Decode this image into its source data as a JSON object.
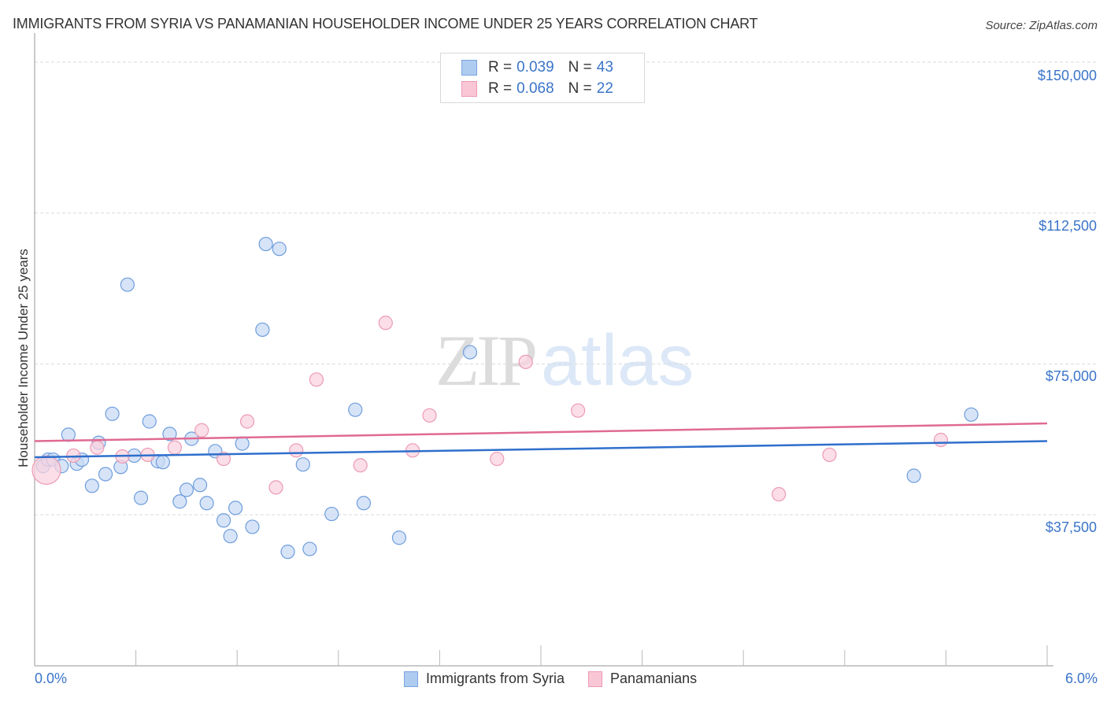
{
  "header": {
    "title": "IMMIGRANTS FROM SYRIA VS PANAMANIAN HOUSEHOLDER INCOME UNDER 25 YEARS CORRELATION CHART",
    "source": "Source: ZipAtlas.com"
  },
  "watermark": {
    "zip": "ZIP",
    "atlas": "atlas"
  },
  "legend": {
    "rows": [
      {
        "r_label": "R =",
        "r_value": "0.039",
        "n_label": "N =",
        "n_value": "43",
        "color": "#aecbf0",
        "border": "#7aa6e0"
      },
      {
        "r_label": "R =",
        "r_value": "0.068",
        "n_label": "N =",
        "n_value": "22",
        "color": "#f9c6d5",
        "border": "#ec9ab4"
      }
    ]
  },
  "axes": {
    "ylabel": "Householder Income Under 25 years",
    "y_ticks": [
      "$150,000",
      "$112,500",
      "$75,000",
      "$37,500"
    ],
    "x_min_label": "0.0%",
    "x_max_label": "6.0%"
  },
  "bottom_legend": [
    {
      "label": "Immigrants from Syria",
      "color": "#aecbf0",
      "border": "#7aa6e0"
    },
    {
      "label": "Panamanians",
      "color": "#f9c6d5",
      "border": "#ec9ab4"
    }
  ],
  "colors": {
    "blue_fill": "#c9dbf5",
    "blue_stroke": "#6e9ddc",
    "blue_line": "#2f6fcc",
    "pink_fill": "#fad3df",
    "pink_stroke": "#ec9ab4",
    "pink_line": "#e06a93",
    "axis_text": "#3a74c9"
  },
  "chart_data": {
    "type": "scatter",
    "title": "IMMIGRANTS FROM SYRIA VS PANAMANIAN HOUSEHOLDER INCOME UNDER 25 YEARS CORRELATION CHART",
    "xlabel": "",
    "ylabel": "Householder Income Under 25 years",
    "xlim": [
      0.0,
      6.0
    ],
    "ylim": [
      0,
      150000
    ],
    "x_unit": "%",
    "y_ticks": [
      37500,
      75000,
      112500,
      150000
    ],
    "grid": true,
    "legend_position": "top-center / bottom",
    "series": [
      {
        "name": "Immigrants from Syria",
        "R": 0.039,
        "N": 43,
        "trend": {
          "x": [
            0.0,
            6.0
          ],
          "y": [
            51800,
            55800
          ]
        },
        "points": [
          {
            "x": 0.05,
            "y": 49600
          },
          {
            "x": 0.08,
            "y": 51200
          },
          {
            "x": 0.11,
            "y": 51200
          },
          {
            "x": 0.2,
            "y": 57400
          },
          {
            "x": 0.16,
            "y": 49600
          },
          {
            "x": 0.25,
            "y": 50200
          },
          {
            "x": 0.28,
            "y": 51200
          },
          {
            "x": 0.34,
            "y": 44700
          },
          {
            "x": 0.38,
            "y": 55400
          },
          {
            "x": 0.42,
            "y": 47600
          },
          {
            "x": 0.46,
            "y": 62600
          },
          {
            "x": 0.51,
            "y": 49400
          },
          {
            "x": 0.55,
            "y": 94700
          },
          {
            "x": 0.59,
            "y": 52200
          },
          {
            "x": 0.63,
            "y": 41700
          },
          {
            "x": 0.68,
            "y": 60700
          },
          {
            "x": 0.73,
            "y": 50800
          },
          {
            "x": 0.76,
            "y": 50600
          },
          {
            "x": 0.8,
            "y": 57600
          },
          {
            "x": 0.86,
            "y": 40800
          },
          {
            "x": 0.9,
            "y": 43700
          },
          {
            "x": 0.93,
            "y": 56400
          },
          {
            "x": 0.98,
            "y": 44900
          },
          {
            "x": 1.02,
            "y": 40400
          },
          {
            "x": 1.07,
            "y": 53300
          },
          {
            "x": 1.12,
            "y": 36100
          },
          {
            "x": 1.16,
            "y": 32200
          },
          {
            "x": 1.19,
            "y": 39200
          },
          {
            "x": 1.23,
            "y": 55200
          },
          {
            "x": 1.29,
            "y": 34500
          },
          {
            "x": 1.35,
            "y": 83500
          },
          {
            "x": 1.37,
            "y": 104800
          },
          {
            "x": 1.45,
            "y": 103600
          },
          {
            "x": 1.5,
            "y": 28300
          },
          {
            "x": 1.59,
            "y": 50000
          },
          {
            "x": 1.63,
            "y": 29000
          },
          {
            "x": 1.76,
            "y": 37700
          },
          {
            "x": 1.9,
            "y": 63600
          },
          {
            "x": 1.95,
            "y": 40400
          },
          {
            "x": 2.16,
            "y": 31800
          },
          {
            "x": 2.58,
            "y": 77900
          },
          {
            "x": 5.21,
            "y": 47200
          },
          {
            "x": 5.55,
            "y": 62400
          }
        ]
      },
      {
        "name": "Panamanians",
        "R": 0.068,
        "N": 22,
        "trend": {
          "x": [
            0.0,
            6.0
          ],
          "y": [
            55800,
            60200
          ]
        },
        "points": [
          {
            "x": 0.07,
            "y": 48600
          },
          {
            "x": 0.23,
            "y": 52200
          },
          {
            "x": 0.37,
            "y": 54200
          },
          {
            "x": 0.52,
            "y": 52000
          },
          {
            "x": 0.67,
            "y": 52400
          },
          {
            "x": 0.83,
            "y": 54200
          },
          {
            "x": 0.99,
            "y": 58500
          },
          {
            "x": 1.12,
            "y": 51400
          },
          {
            "x": 1.26,
            "y": 60700
          },
          {
            "x": 1.43,
            "y": 44300
          },
          {
            "x": 1.55,
            "y": 53500
          },
          {
            "x": 1.67,
            "y": 71100
          },
          {
            "x": 1.93,
            "y": 49800
          },
          {
            "x": 2.08,
            "y": 85200
          },
          {
            "x": 2.24,
            "y": 53500
          },
          {
            "x": 2.34,
            "y": 62200
          },
          {
            "x": 2.74,
            "y": 51400
          },
          {
            "x": 2.91,
            "y": 75500
          },
          {
            "x": 3.22,
            "y": 63400
          },
          {
            "x": 4.41,
            "y": 42600
          },
          {
            "x": 4.71,
            "y": 52400
          },
          {
            "x": 5.37,
            "y": 56100
          }
        ]
      }
    ]
  }
}
